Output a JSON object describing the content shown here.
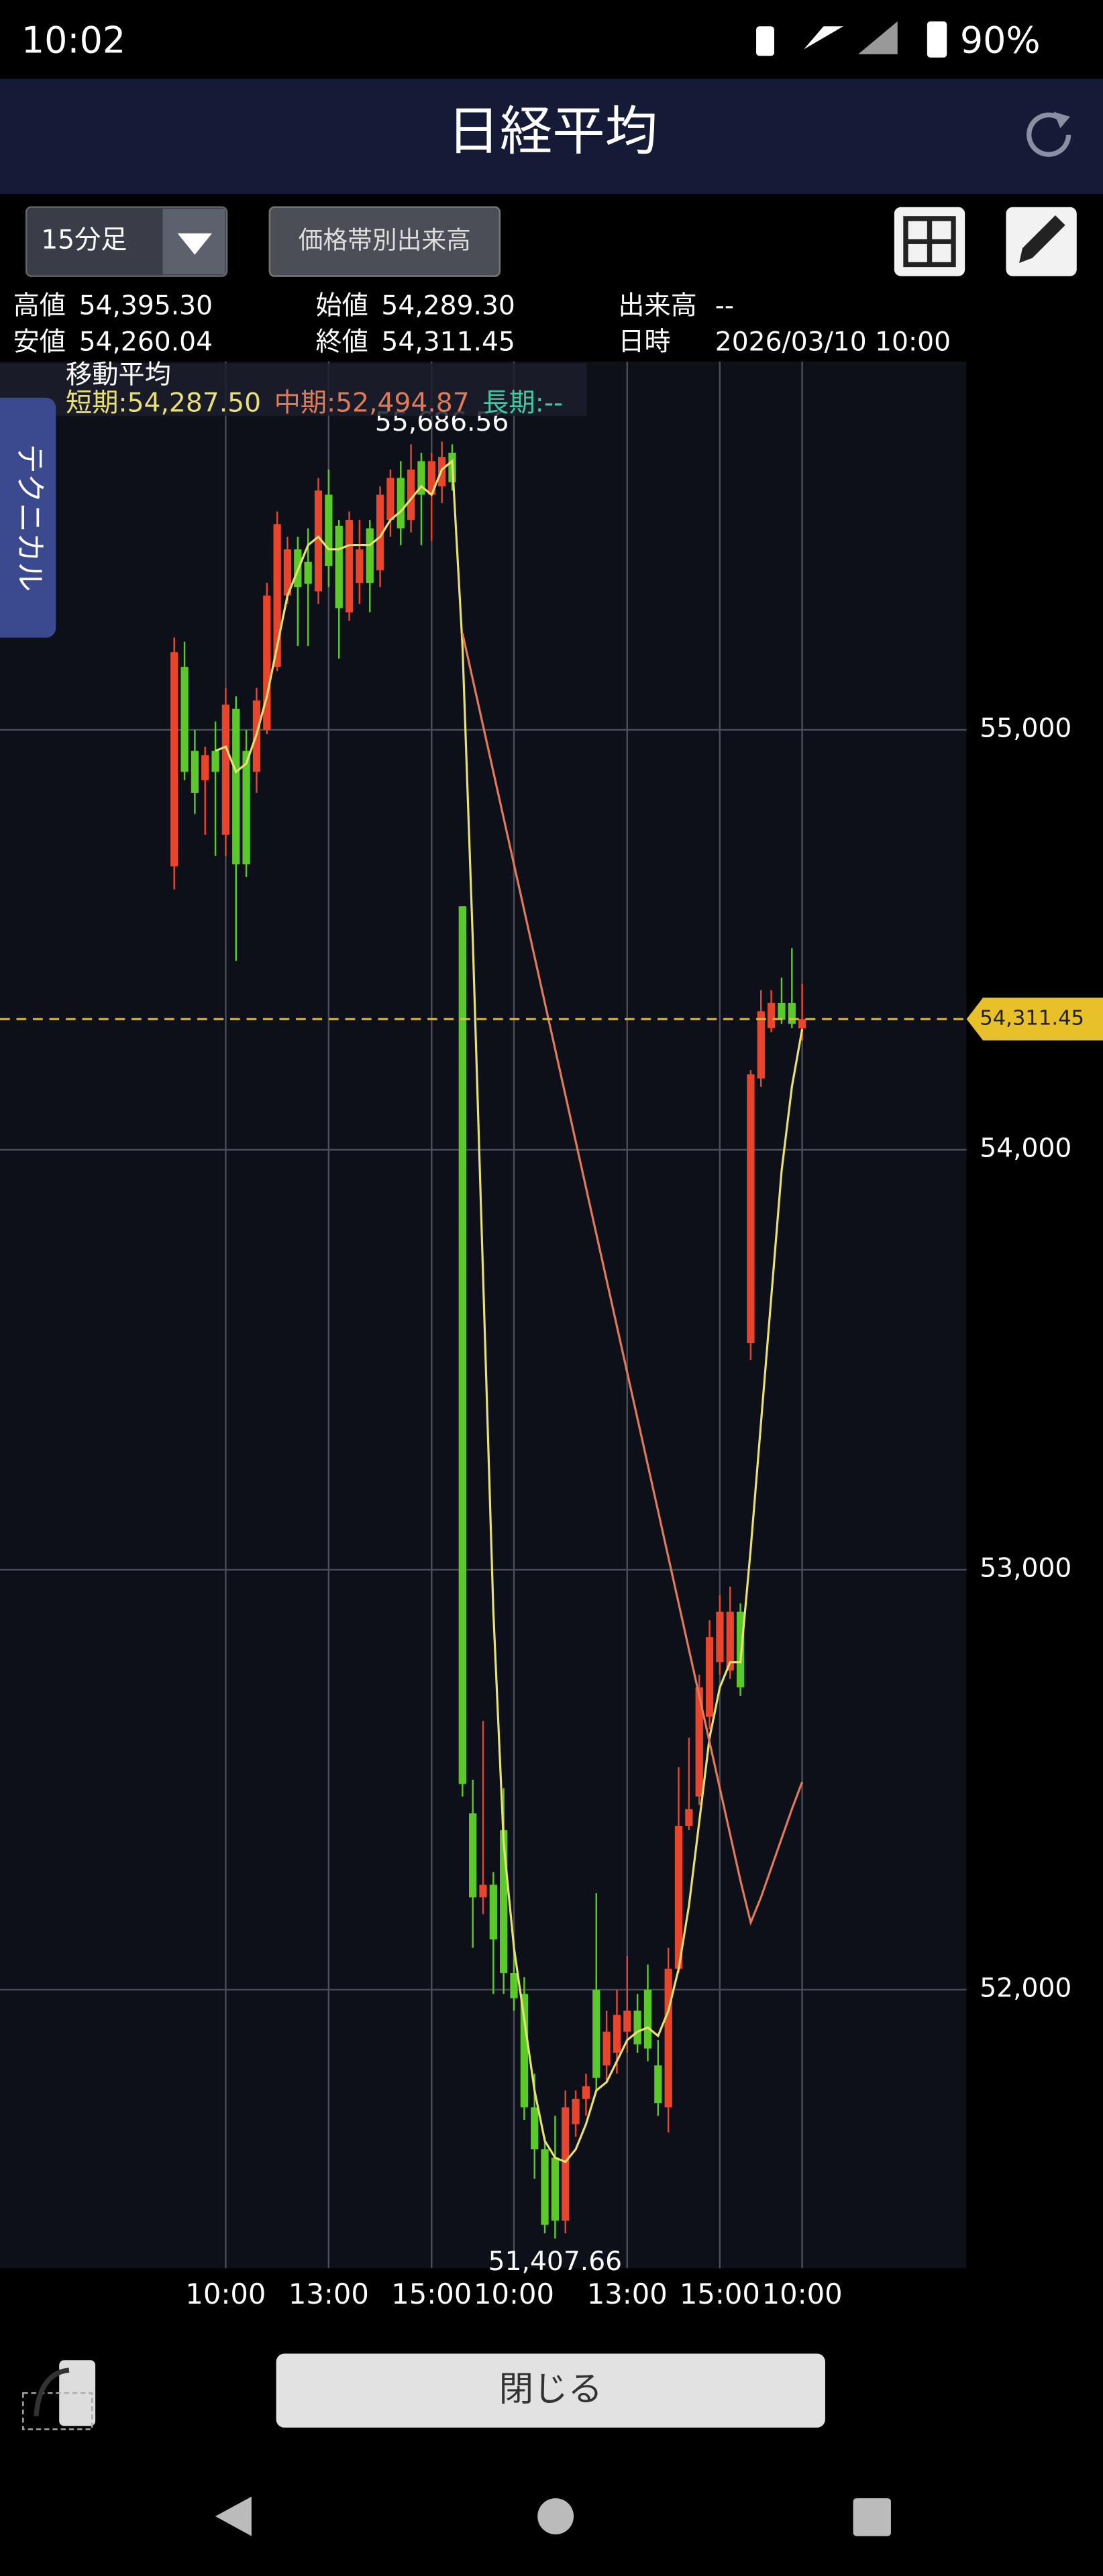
{
  "status_bar": {
    "time": "10:02",
    "battery": "90%"
  },
  "header": {
    "title": "日経平均"
  },
  "toolbar": {
    "interval": "15分足",
    "volume_button": "価格帯別出来高"
  },
  "info": {
    "high_label": "高値",
    "high": "54,395.30",
    "open_label": "始値",
    "open": "54,289.30",
    "volume_label": "出来高",
    "volume": "--",
    "low_label": "安値",
    "low": "54,260.04",
    "close_label": "終値",
    "close": "54,311.45",
    "datetime_label": "日時",
    "datetime": "2026/03/10 10:00"
  },
  "side_tab": "テクニカル",
  "chart_data": {
    "type": "candlestick",
    "indicator_title": "移動平均",
    "legend_sep": ":",
    "categories": [
      null,
      null,
      null,
      null,
      null,
      "10:00",
      null,
      null,
      null,
      null,
      null,
      null,
      null,
      null,
      null,
      "13:00",
      null,
      null,
      null,
      null,
      null,
      null,
      null,
      null,
      null,
      "15:00",
      null,
      null,
      null,
      null,
      null,
      null,
      null,
      "10:00",
      null,
      null,
      null,
      null,
      null,
      null,
      null,
      null,
      null,
      null,
      "13:00",
      null,
      null,
      null,
      null,
      null,
      null,
      null,
      null,
      "15:00",
      null,
      null,
      null,
      null,
      null,
      null,
      null,
      "10:00"
    ],
    "open": [
      54675,
      55150,
      54950,
      54880,
      54950,
      54750,
      55050,
      54950,
      54900,
      55000,
      55150,
      55320,
      55430,
      55400,
      55330,
      55560,
      55486,
      55280,
      55350,
      55480,
      55380,
      55500,
      55600,
      55500,
      55640,
      55560,
      55580,
      55660,
      54580,
      52420,
      52220,
      52250,
      52380,
      52040,
      51990,
      51720,
      51620,
      51600,
      51450,
      51680,
      51740,
      52000,
      51820,
      51850,
      51900,
      51950,
      52000,
      51820,
      51720,
      52050,
      52390,
      52460,
      52650,
      52780,
      52760,
      52900,
      53540,
      54170,
      54290,
      54350,
      54350,
      54289.3
    ],
    "high": [
      55220,
      55210,
      55000,
      54960,
      55020,
      55100,
      55080,
      55000,
      55100,
      55350,
      55520,
      55460,
      55460,
      55480,
      55600,
      55620,
      55500,
      55520,
      55500,
      55500,
      55580,
      55620,
      55640,
      55680,
      55660,
      55660,
      55686.56,
      55680,
      54580,
      52500,
      52640,
      52280,
      52480,
      52100,
      52030,
      51800,
      51650,
      51700,
      51760,
      51760,
      51800,
      52230,
      51950,
      52000,
      52080,
      51990,
      52060,
      51880,
      52100,
      52530,
      52600,
      52750,
      52880,
      52940,
      52960,
      52920,
      54190,
      54380,
      54380,
      54410,
      54480,
      54395.3
    ],
    "low": [
      54620,
      54880,
      54800,
      54750,
      54700,
      54700,
      54450,
      54650,
      54850,
      54990,
      55140,
      55300,
      55200,
      55200,
      55300,
      55340,
      55170,
      55260,
      55300,
      55280,
      55340,
      55460,
      55440,
      55470,
      55440,
      55450,
      55540,
      55570,
      52460,
      52100,
      52180,
      51990,
      51990,
      51950,
      51690,
      51550,
      51420,
      51407.66,
      51420,
      51650,
      51700,
      51760,
      51780,
      51800,
      51850,
      51850,
      51830,
      51700,
      51660,
      52040,
      52380,
      52440,
      52620,
      52750,
      52740,
      52700,
      53500,
      54150,
      54280,
      54300,
      54290,
      54260.04
    ],
    "close": [
      55185,
      54900,
      54850,
      54940,
      54900,
      55060,
      54680,
      54680,
      55070,
      55320,
      55490,
      55430,
      55340,
      55348,
      55570,
      55390,
      55290,
      55500,
      55430,
      55350,
      55560,
      55600,
      55480,
      55620,
      55560,
      55640,
      55650,
      55590,
      52490,
      52220,
      52250,
      52120,
      52040,
      51980,
      51720,
      51620,
      51440,
      51450,
      51720,
      51740,
      51770,
      51790,
      51900,
      51940,
      51950,
      51870,
      51860,
      51730,
      52050,
      52390,
      52430,
      52720,
      52840,
      52900,
      52900,
      52720,
      54180,
      54330,
      54350,
      54310,
      54300,
      54311.45
    ],
    "up_color": "#e8452c",
    "down_color": "#5cc92a",
    "series": [
      {
        "name": "短期",
        "color": "#e8e070",
        "legend_value": "54,287.50",
        "values": [
          null,
          null,
          null,
          null,
          54950,
          54960,
          54900,
          54920,
          54990,
          55080,
          55200,
          55320,
          55380,
          55440,
          55460,
          55430,
          55430,
          55440,
          55440,
          55440,
          55460,
          55500,
          55520,
          55550,
          55580,
          55560,
          55620,
          55640,
          55200,
          54500,
          53700,
          52900,
          52350,
          52100,
          51930,
          51760,
          51640,
          51600,
          51590,
          51620,
          51680,
          51760,
          51780,
          51830,
          51880,
          51900,
          51910,
          51890,
          51950,
          52050,
          52200,
          52400,
          52600,
          52720,
          52780,
          52780,
          53050,
          53350,
          53650,
          53950,
          54150,
          54287.5
        ]
      },
      {
        "name": "中期",
        "color": "#e07a58",
        "legend_value": "52,494.87",
        "values": [
          null,
          null,
          null,
          null,
          null,
          null,
          null,
          null,
          null,
          null,
          null,
          null,
          null,
          null,
          null,
          null,
          null,
          null,
          null,
          null,
          null,
          null,
          null,
          null,
          null,
          null,
          null,
          null,
          55230,
          55120,
          55010,
          54900,
          54790,
          54680,
          54570,
          54460,
          54350,
          54240,
          54130,
          54020,
          53910,
          53800,
          53690,
          53580,
          53470,
          53360,
          53250,
          53140,
          53030,
          52920,
          52810,
          52700,
          52590,
          52480,
          52370,
          52260,
          52160,
          52220,
          52290,
          52360,
          52430,
          52494.87
        ]
      },
      {
        "name": "長期",
        "color": "#3ec9a0",
        "legend_value": "--",
        "values": [
          null,
          null,
          null,
          null,
          null,
          null,
          null,
          null,
          null,
          null,
          null,
          null,
          null,
          null,
          null,
          null,
          null,
          null,
          null,
          null,
          null,
          null,
          null,
          null,
          null,
          null,
          null,
          null,
          null,
          null,
          null,
          null,
          null,
          null,
          null,
          null,
          null,
          null,
          null,
          null,
          null,
          null,
          null,
          null,
          null,
          null,
          null,
          null,
          null,
          null,
          null,
          null,
          null,
          null,
          null,
          null,
          null,
          null,
          null,
          null,
          null,
          null
        ]
      }
    ],
    "ylim": [
      51337,
      55877
    ],
    "yticks": [
      {
        "value": 52000,
        "label": "52,000"
      },
      {
        "value": 53000,
        "label": "53,000"
      },
      {
        "value": 54000,
        "label": "54,000"
      },
      {
        "value": 55000,
        "label": "55,000"
      }
    ],
    "grid": true,
    "current_price": {
      "value": 54311.45,
      "label": "54,311.45",
      "color": "#e8c02a"
    },
    "max_label": {
      "value": 55686.56,
      "label": "55,686.56"
    },
    "min_label": {
      "value": 51407.66,
      "label": "51,407.66"
    }
  },
  "footer": {
    "close_button": "閉じる"
  }
}
